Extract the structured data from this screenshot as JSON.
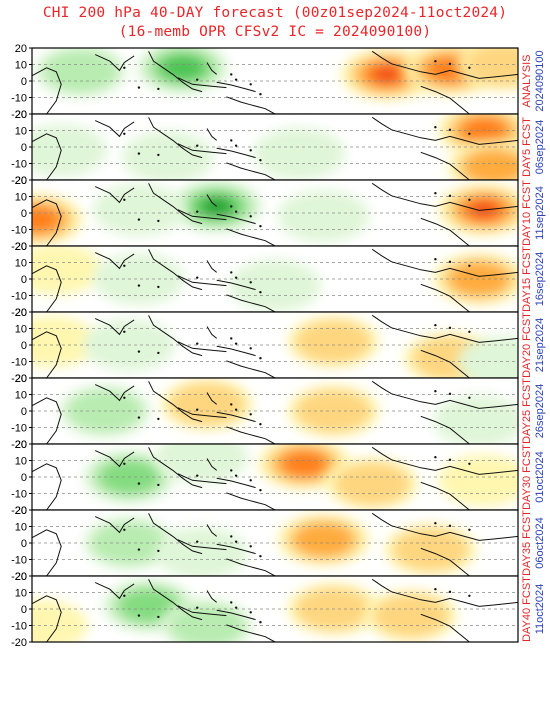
{
  "title_line1": "CHI 200 hPa 40-DAY forecast (00z01sep2024-11oct2024)",
  "title_line2": "(16-memb OPR CFSv2 IC = 2024090100)",
  "colors": {
    "title": "#e8262a",
    "label_red": "#e8262a",
    "label_blue": "#2a3fb8",
    "positive_scale": [
      "#fff7b0",
      "#ffd680",
      "#ffab3c",
      "#ff7f1e",
      "#f04e1a"
    ],
    "negative_scale": [
      "#e0f6d8",
      "#b8ecb0",
      "#84dc80",
      "#4ec454",
      "#1e9e2e"
    ]
  },
  "chart_data": {
    "type": "heatmap",
    "variable": "CHI 200 hPa",
    "ylim": [
      -20,
      20
    ],
    "yticks": [
      "20",
      "10",
      "0",
      "-10",
      "-20"
    ],
    "grid": "dashed latitude lines",
    "panels": [
      {
        "label": "ANALYSIS",
        "date": "2024090100",
        "blobs": [
          {
            "sign": "neg",
            "lon": 0.31,
            "lat": 8,
            "strength": 4
          },
          {
            "sign": "neg",
            "lon": 0.1,
            "lat": 6,
            "strength": 2
          },
          {
            "sign": "pos",
            "lon": 0.73,
            "lat": 4,
            "strength": 5
          },
          {
            "sign": "pos",
            "lon": 0.86,
            "lat": 7,
            "strength": 4
          },
          {
            "sign": "pos",
            "lon": 0.97,
            "lat": 10,
            "strength": 2
          }
        ]
      },
      {
        "label": "DAY5 FCST",
        "date": "06sep2024",
        "blobs": [
          {
            "sign": "neg",
            "lon": 0.06,
            "lat": -2,
            "strength": 1
          },
          {
            "sign": "neg",
            "lon": 0.28,
            "lat": -6,
            "strength": 1
          },
          {
            "sign": "neg",
            "lon": 0.55,
            "lat": -4,
            "strength": 1
          },
          {
            "sign": "pos",
            "lon": 0.93,
            "lat": 10,
            "strength": 4
          },
          {
            "sign": "pos",
            "lon": 0.95,
            "lat": -12,
            "strength": 3
          }
        ]
      },
      {
        "label": "DAY10 FCST",
        "date": "11sep2024",
        "blobs": [
          {
            "sign": "pos",
            "lon": 0.01,
            "lat": -4,
            "strength": 4
          },
          {
            "sign": "neg",
            "lon": 0.38,
            "lat": 4,
            "strength": 5
          },
          {
            "sign": "neg",
            "lon": 0.22,
            "lat": 2,
            "strength": 1
          },
          {
            "sign": "neg",
            "lon": 0.6,
            "lat": -2,
            "strength": 1
          },
          {
            "sign": "pos",
            "lon": 0.93,
            "lat": 2,
            "strength": 5
          }
        ]
      },
      {
        "label": "DAY15 FCST",
        "date": "16sep2024",
        "blobs": [
          {
            "sign": "pos",
            "lon": 0.05,
            "lat": 6,
            "strength": 1
          },
          {
            "sign": "neg",
            "lon": 0.22,
            "lat": 0,
            "strength": 1
          },
          {
            "sign": "neg",
            "lon": 0.5,
            "lat": -4,
            "strength": 1
          },
          {
            "sign": "pos",
            "lon": 0.92,
            "lat": 0,
            "strength": 3
          }
        ]
      },
      {
        "label": "DAY20 FCST",
        "date": "21sep2024",
        "blobs": [
          {
            "sign": "pos",
            "lon": 0.04,
            "lat": 2,
            "strength": 1
          },
          {
            "sign": "neg",
            "lon": 0.2,
            "lat": 0,
            "strength": 1
          },
          {
            "sign": "pos",
            "lon": 0.62,
            "lat": 2,
            "strength": 2
          },
          {
            "sign": "pos",
            "lon": 0.86,
            "lat": -8,
            "strength": 2
          },
          {
            "sign": "neg",
            "lon": 0.97,
            "lat": -10,
            "strength": 1
          }
        ]
      },
      {
        "label": "DAY25 FCST",
        "date": "26sep2024",
        "blobs": [
          {
            "sign": "neg",
            "lon": 0.15,
            "lat": 0,
            "strength": 2
          },
          {
            "sign": "pos",
            "lon": 0.36,
            "lat": 4,
            "strength": 2
          },
          {
            "sign": "pos",
            "lon": 0.62,
            "lat": 0,
            "strength": 2
          },
          {
            "sign": "neg",
            "lon": 0.92,
            "lat": -6,
            "strength": 1
          }
        ]
      },
      {
        "label": "DAY30 FCST",
        "date": "01oct2024",
        "blobs": [
          {
            "sign": "neg",
            "lon": 0.2,
            "lat": 0,
            "strength": 3
          },
          {
            "sign": "neg",
            "lon": 0.35,
            "lat": 12,
            "strength": 1
          },
          {
            "sign": "pos",
            "lon": 0.56,
            "lat": 8,
            "strength": 4
          },
          {
            "sign": "pos",
            "lon": 0.7,
            "lat": -4,
            "strength": 2
          },
          {
            "sign": "pos",
            "lon": 0.93,
            "lat": -2,
            "strength": 1
          }
        ]
      },
      {
        "label": "DAY35 FCST",
        "date": "06oct2024",
        "blobs": [
          {
            "sign": "neg",
            "lon": 0.2,
            "lat": 0,
            "strength": 2
          },
          {
            "sign": "neg",
            "lon": 0.35,
            "lat": -6,
            "strength": 1
          },
          {
            "sign": "pos",
            "lon": 0.6,
            "lat": 2,
            "strength": 3
          },
          {
            "sign": "pos",
            "lon": 0.82,
            "lat": -4,
            "strength": 2
          }
        ]
      },
      {
        "label": "DAY40 FCST",
        "date": "11oct2024",
        "blobs": [
          {
            "sign": "neg",
            "lon": 0.24,
            "lat": 2,
            "strength": 3
          },
          {
            "sign": "neg",
            "lon": 0.36,
            "lat": -10,
            "strength": 2
          },
          {
            "sign": "pos",
            "lon": 0.02,
            "lat": -10,
            "strength": 1
          },
          {
            "sign": "pos",
            "lon": 0.62,
            "lat": 0,
            "strength": 2
          },
          {
            "sign": "pos",
            "lon": 0.78,
            "lat": -4,
            "strength": 2
          }
        ]
      }
    ]
  }
}
